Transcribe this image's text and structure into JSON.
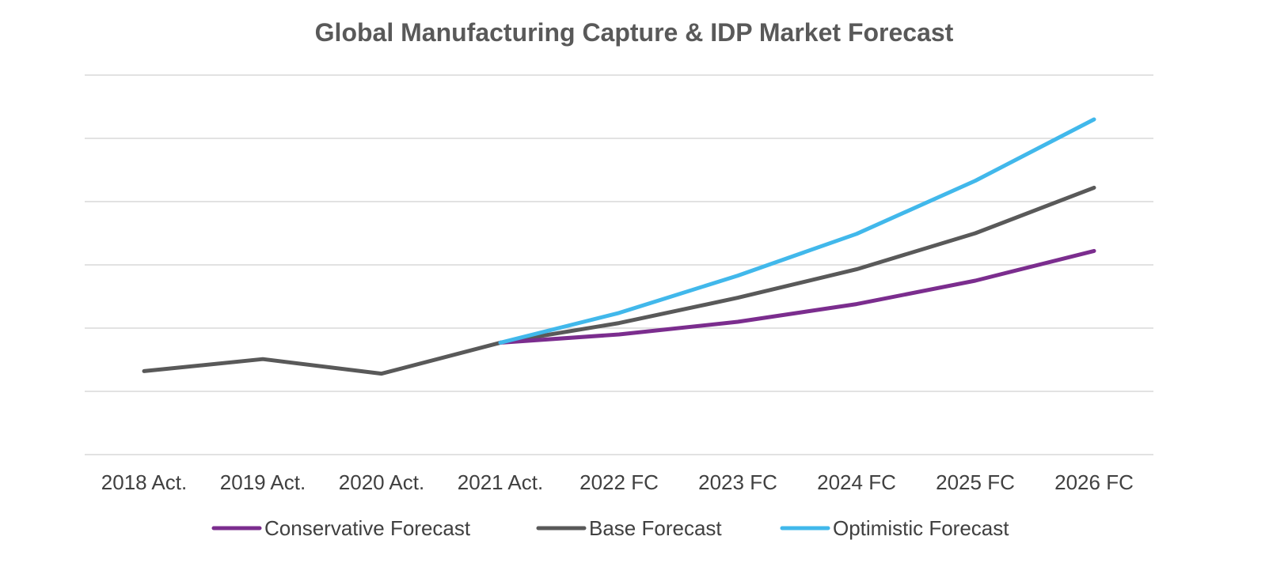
{
  "chart_data": {
    "type": "line",
    "title": "Global Manufacturing Capture & IDP Market Forecast",
    "xlabel": "",
    "ylabel": "",
    "categories": [
      "2018 Act.",
      "2019 Act.",
      "2020 Act.",
      "2021 Act.",
      "2022 FC",
      "2023 FC",
      "2024 FC",
      "2025 FC",
      "2026 FC"
    ],
    "ylim": [
      0,
      6
    ],
    "y_tick_count": 7,
    "y_tick_labels_visible": false,
    "grid": true,
    "legend_position": "bottom",
    "series": [
      {
        "name": "Conservative Forecast",
        "color": "#7B2D8E",
        "values": [
          null,
          null,
          null,
          1.77,
          1.9,
          2.1,
          2.38,
          2.75,
          3.22
        ]
      },
      {
        "name": "Base Forecast",
        "color": "#595959",
        "values": [
          1.32,
          1.51,
          1.28,
          1.77,
          2.08,
          2.48,
          2.93,
          3.5,
          4.22
        ]
      },
      {
        "name": "Optimistic Forecast",
        "color": "#41B8EB",
        "values": [
          null,
          null,
          null,
          1.77,
          2.24,
          2.83,
          3.49,
          4.33,
          5.3
        ]
      }
    ]
  }
}
